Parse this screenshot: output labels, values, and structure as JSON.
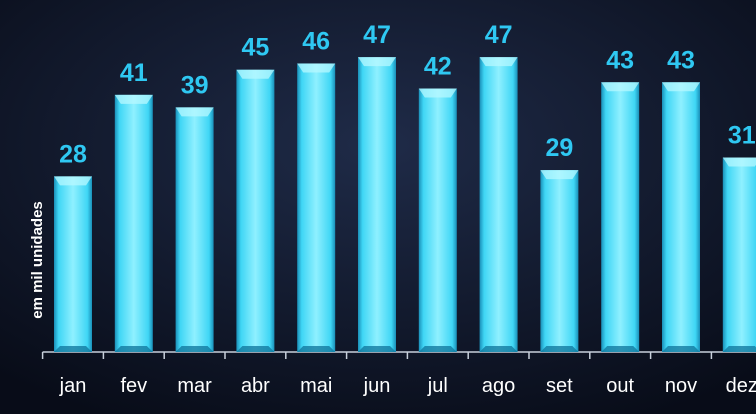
{
  "chart_data": {
    "type": "bar",
    "y_label": "em mil unidades",
    "categories": [
      "jan",
      "fev",
      "mar",
      "abr",
      "mai",
      "jun",
      "jul",
      "ago",
      "set",
      "out",
      "nov",
      "dez"
    ],
    "values": [
      28,
      41,
      39,
      45,
      46,
      47,
      42,
      47,
      29,
      43,
      43,
      31
    ],
    "color": "#3fd6f5",
    "ylim": [
      0,
      55
    ]
  }
}
